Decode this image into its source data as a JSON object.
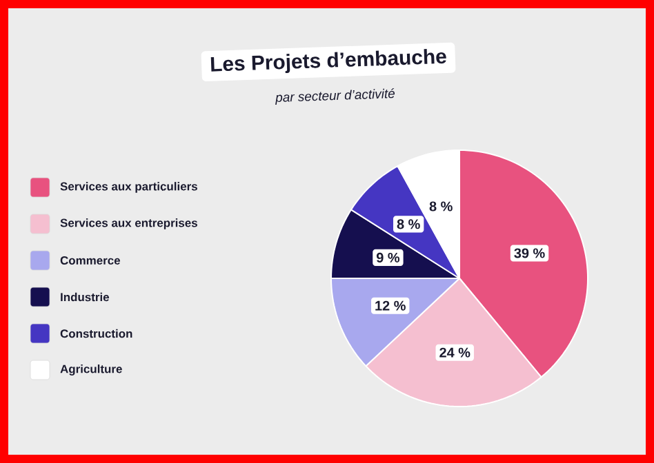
{
  "chart_data": {
    "type": "pie",
    "title": "Les Projets d’embauche",
    "subtitle": "par secteur d’activité",
    "categories": [
      "Services aux particuliers",
      "Services aux entreprises",
      "Commerce",
      "Industrie",
      "Construction",
      "Agriculture"
    ],
    "values": [
      39,
      24,
      12,
      9,
      8,
      8
    ],
    "colors": [
      "#e8527f",
      "#f5bfd0",
      "#a8a8ee",
      "#150f4f",
      "#4536c2",
      "#ffffff"
    ],
    "value_labels": [
      "39 %",
      "24 %",
      "12 %",
      "9 %",
      "8 %",
      "8 %"
    ],
    "legend": "left"
  }
}
